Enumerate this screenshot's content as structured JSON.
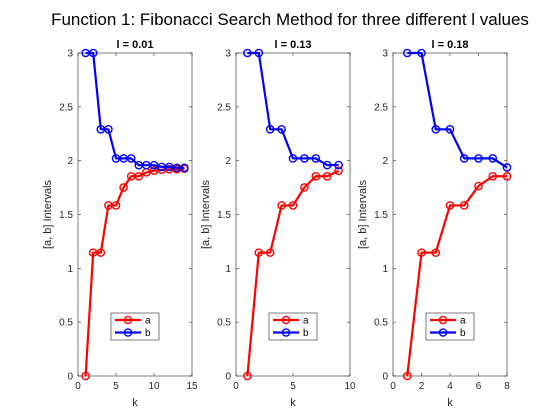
{
  "figure": {
    "title": "Function 1: Fibonacci Search Method for three different l values"
  },
  "chart_data": [
    {
      "type": "line",
      "title": "l = 0.01",
      "xlabel": "k",
      "ylabel": "[a, b] Intervals",
      "xlim": [
        0,
        15
      ],
      "ylim": [
        0,
        3
      ],
      "xticks": [
        "0",
        "5",
        "10",
        "15"
      ],
      "yticks": [
        "0",
        "0.5",
        "1",
        "1.5",
        "2",
        "2.5",
        "3"
      ],
      "grid": false,
      "legend_position": "lower-center",
      "x": [
        1,
        2,
        3,
        4,
        5,
        6,
        7,
        8,
        9,
        10,
        11,
        12,
        13,
        14
      ],
      "series": [
        {
          "name": "a",
          "color": "#ff0000",
          "values": [
            0,
            1.146,
            1.146,
            1.584,
            1.584,
            1.751,
            1.855,
            1.855,
            1.892,
            1.907,
            1.916,
            1.921,
            1.921,
            1.925
          ]
        },
        {
          "name": "b",
          "color": "#0000ff",
          "values": [
            3,
            3,
            2.291,
            2.291,
            2.021,
            2.021,
            2.021,
            1.958,
            1.958,
            1.958,
            1.942,
            1.942,
            1.934,
            1.934
          ]
        }
      ]
    },
    {
      "type": "line",
      "title": "l = 0.13",
      "xlabel": "k",
      "ylabel": "[a, b] Intervals",
      "xlim": [
        0,
        10
      ],
      "ylim": [
        0,
        3
      ],
      "xticks": [
        "0",
        "5",
        "10"
      ],
      "yticks": [
        "0",
        "0.5",
        "1",
        "1.5",
        "2",
        "2.5",
        "3"
      ],
      "grid": false,
      "legend_position": "lower-center",
      "x": [
        1,
        2,
        3,
        4,
        5,
        6,
        7,
        8,
        9
      ],
      "series": [
        {
          "name": "a",
          "color": "#ff0000",
          "values": [
            0,
            1.146,
            1.146,
            1.584,
            1.584,
            1.751,
            1.855,
            1.855,
            1.906
          ]
        },
        {
          "name": "b",
          "color": "#0000ff",
          "values": [
            3,
            3,
            2.291,
            2.291,
            2.021,
            2.021,
            2.021,
            1.959,
            1.959
          ]
        }
      ]
    },
    {
      "type": "line",
      "title": "l = 0.18",
      "xlabel": "k",
      "ylabel": "[a, b] Intervals",
      "xlim": [
        0,
        8
      ],
      "ylim": [
        0,
        3
      ],
      "xticks": [
        "0",
        "2",
        "4",
        "6",
        "8"
      ],
      "yticks": [
        "0",
        "0.5",
        "1",
        "1.5",
        "2",
        "2.5",
        "3"
      ],
      "grid": false,
      "legend_position": "lower-center",
      "x": [
        1,
        2,
        3,
        4,
        5,
        6,
        7,
        8
      ],
      "series": [
        {
          "name": "a",
          "color": "#ff0000",
          "values": [
            0,
            1.146,
            1.146,
            1.584,
            1.584,
            1.764,
            1.855,
            1.855
          ]
        },
        {
          "name": "b",
          "color": "#0000ff",
          "values": [
            3,
            3,
            2.291,
            2.291,
            2.021,
            2.021,
            2.021,
            1.937
          ]
        }
      ]
    }
  ]
}
